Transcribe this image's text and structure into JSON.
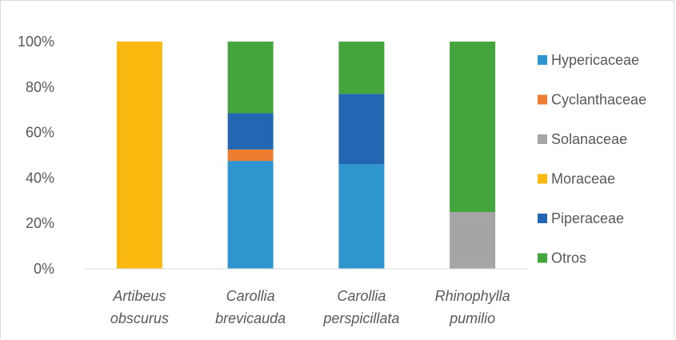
{
  "chart_data": {
    "type": "bar",
    "stacked": true,
    "percent": true,
    "categories": [
      [
        "Artibeus",
        "obscurus"
      ],
      [
        "Carollia",
        "brevicauda"
      ],
      [
        "Carollia",
        "perspicillata"
      ],
      [
        "Rhinophylla",
        "pumilio"
      ]
    ],
    "ylim": [
      0,
      100
    ],
    "yticks": [
      "0%",
      "20%",
      "40%",
      "60%",
      "80%",
      "100%"
    ],
    "grid": false,
    "legend_position": "right",
    "series": [
      {
        "name": "Hypericaceae",
        "color": "#2e95cf",
        "values": [
          0,
          47.5,
          46,
          0
        ]
      },
      {
        "name": "Cyclanthaceae",
        "color": "#ed7d31",
        "values": [
          0,
          5,
          0,
          0
        ]
      },
      {
        "name": "Solanaceae",
        "color": "#a5a5a5",
        "values": [
          0,
          0,
          0,
          25
        ]
      },
      {
        "name": "Moraceae",
        "color": "#fbb80f",
        "values": [
          100,
          0,
          0,
          0
        ]
      },
      {
        "name": "Piperaceae",
        "color": "#2366b1",
        "values": [
          0,
          16,
          31,
          0
        ]
      },
      {
        "name": "Otros",
        "color": "#44a53c",
        "values": [
          0,
          31.5,
          23,
          75
        ]
      }
    ]
  }
}
